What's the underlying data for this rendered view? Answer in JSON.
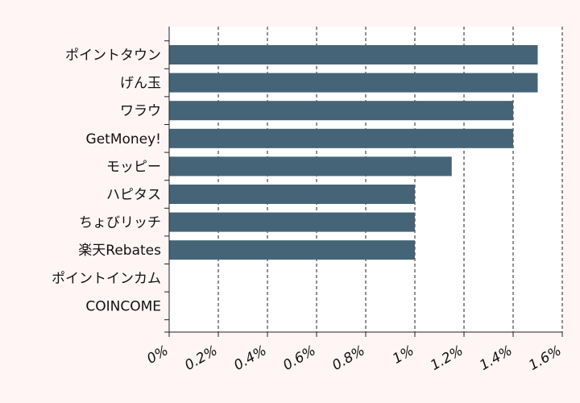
{
  "chart_data": {
    "type": "bar",
    "orientation": "horizontal",
    "categories": [
      "ポイントタウン",
      "げん玉",
      "ワラウ",
      "GetMoney!",
      "モッピー",
      "ハピタス",
      "ちょびリッチ",
      "楽天Rebates",
      "ポイントインカム",
      "COINCOME"
    ],
    "values": [
      1.5,
      1.5,
      1.4,
      1.4,
      1.15,
      1.0,
      1.0,
      1.0,
      0,
      0
    ],
    "xlim": [
      0,
      1.6
    ],
    "x_ticks": [
      0,
      0.2,
      0.4,
      0.6,
      0.8,
      1,
      1.2,
      1.4,
      1.6
    ],
    "x_tick_labels": [
      "0%",
      "0.2%",
      "0.4%",
      "0.6%",
      "0.8%",
      "1%",
      "1.2%",
      "1.4%",
      "1.6%"
    ],
    "grid": "vertical dashed",
    "bar_color": "#456477",
    "background": "#fff5f5",
    "plot_background": "#ffffff"
  }
}
